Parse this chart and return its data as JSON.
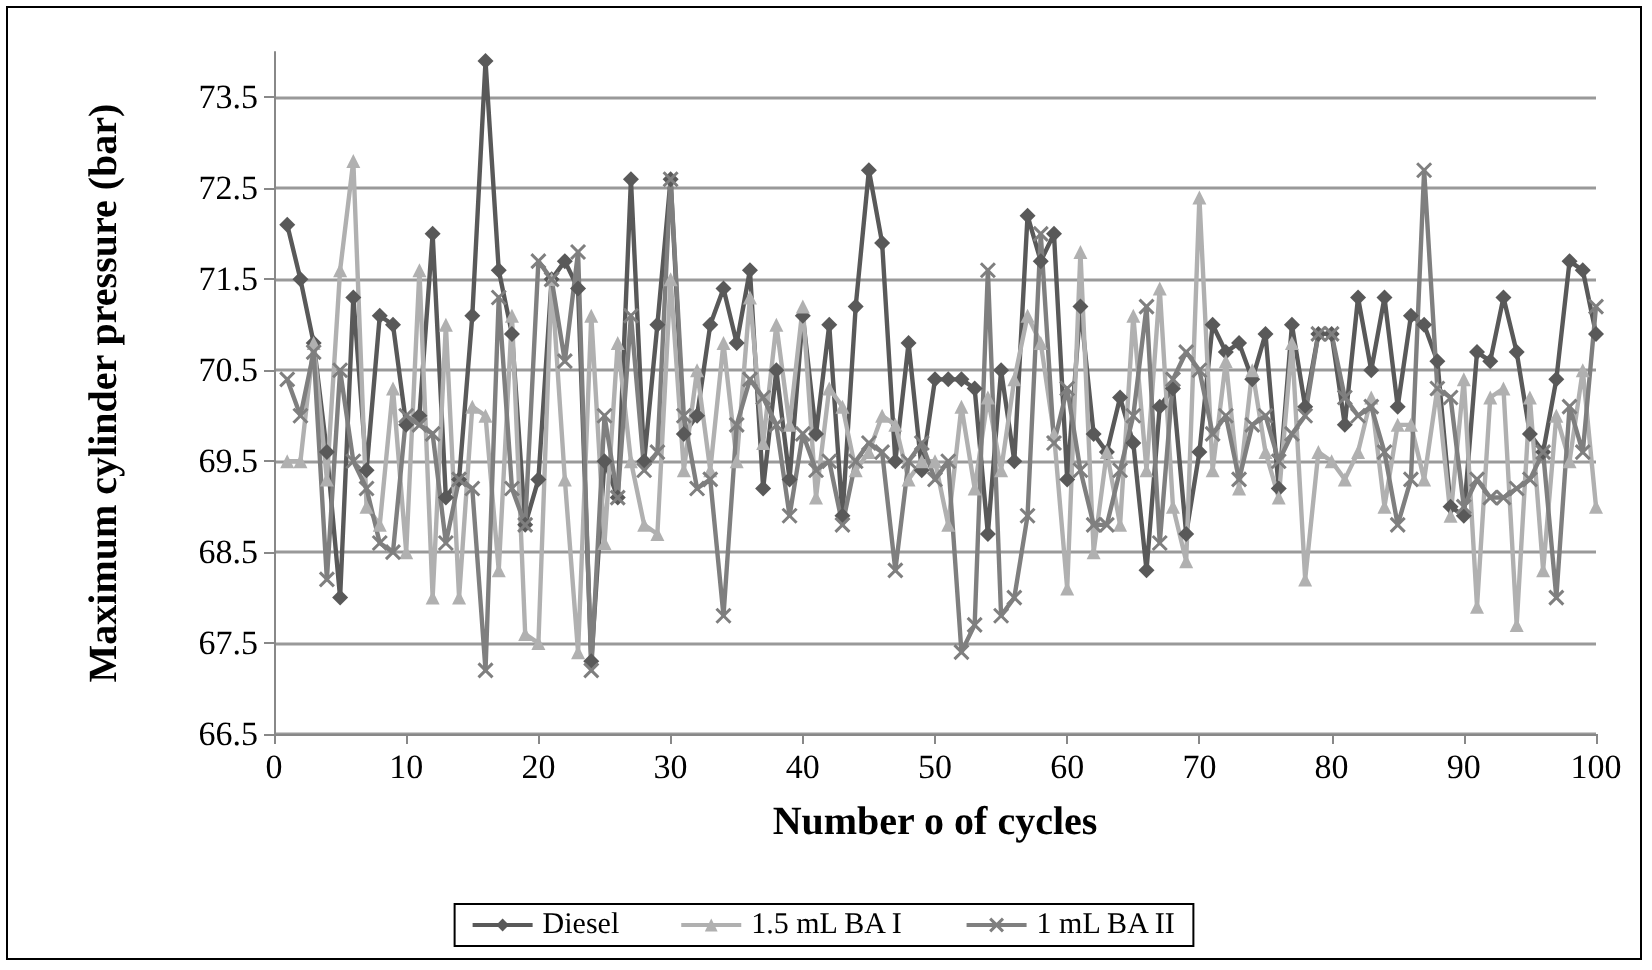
{
  "chart_data": {
    "type": "line",
    "xlabel": "Number o of cycles",
    "ylabel": "Maximum cylinder pressure (bar)",
    "x": [
      1,
      2,
      3,
      4,
      5,
      6,
      7,
      8,
      9,
      10,
      11,
      12,
      13,
      14,
      15,
      16,
      17,
      18,
      19,
      20,
      21,
      22,
      23,
      24,
      25,
      26,
      27,
      28,
      29,
      30,
      31,
      32,
      33,
      34,
      35,
      36,
      37,
      38,
      39,
      40,
      41,
      42,
      43,
      44,
      45,
      46,
      47,
      48,
      49,
      50,
      51,
      52,
      53,
      54,
      55,
      56,
      57,
      58,
      59,
      60,
      61,
      62,
      63,
      64,
      65,
      66,
      67,
      68,
      69,
      70,
      71,
      72,
      73,
      74,
      75,
      76,
      77,
      78,
      79,
      80,
      81,
      82,
      83,
      84,
      85,
      86,
      87,
      88,
      89,
      90,
      91,
      92,
      93,
      94,
      95,
      96,
      97,
      98,
      99,
      100
    ],
    "series": [
      {
        "name": "Diesel",
        "color": "#595959",
        "marker": "diamond",
        "values": [
          72.1,
          71.5,
          70.8,
          69.6,
          68.0,
          71.3,
          69.4,
          71.1,
          71.0,
          69.9,
          70.0,
          72.0,
          69.1,
          69.3,
          71.1,
          73.9,
          71.6,
          70.9,
          68.8,
          69.3,
          71.5,
          71.7,
          71.4,
          67.3,
          69.5,
          69.1,
          72.6,
          69.5,
          71.0,
          72.6,
          69.8,
          70.0,
          71.0,
          71.4,
          70.8,
          71.6,
          69.2,
          70.5,
          69.3,
          71.1,
          69.8,
          71.0,
          68.9,
          71.2,
          72.7,
          71.9,
          69.5,
          70.8,
          69.4,
          70.4,
          70.4,
          70.4,
          70.3,
          68.7,
          70.5,
          69.5,
          72.2,
          71.7,
          72.0,
          69.3,
          71.2,
          69.8,
          69.6,
          70.2,
          69.7,
          68.3,
          70.1,
          70.3,
          68.7,
          69.6,
          71.0,
          70.7,
          70.8,
          70.4,
          70.9,
          69.2,
          71.0,
          70.1,
          70.9,
          70.9,
          69.9,
          71.3,
          70.5,
          71.3,
          70.1,
          71.1,
          71.0,
          70.6,
          69.0,
          68.9,
          70.7,
          70.6,
          71.3,
          70.7,
          69.8,
          69.6,
          70.4,
          71.7,
          71.6,
          70.9
        ]
      },
      {
        "name": "1.5 mL BA I",
        "color": "#b0b0b0",
        "marker": "triangle",
        "values": [
          69.5,
          69.5,
          70.8,
          69.3,
          71.6,
          72.8,
          69.0,
          68.8,
          70.3,
          68.5,
          71.6,
          68.0,
          71.0,
          68.0,
          70.1,
          70.0,
          68.3,
          71.1,
          67.6,
          67.5,
          71.5,
          69.3,
          67.4,
          71.1,
          68.6,
          70.8,
          69.5,
          68.8,
          68.7,
          71.5,
          69.4,
          70.5,
          69.4,
          70.8,
          69.5,
          71.3,
          69.7,
          71.0,
          69.9,
          71.2,
          69.1,
          70.3,
          70.1,
          69.4,
          69.6,
          70.0,
          69.9,
          69.3,
          69.5,
          69.5,
          68.8,
          70.1,
          69.2,
          70.2,
          69.4,
          70.4,
          71.1,
          70.8,
          69.8,
          68.1,
          71.8,
          68.5,
          69.6,
          68.8,
          71.1,
          69.4,
          71.4,
          69.0,
          68.4,
          72.4,
          69.4,
          70.6,
          69.2,
          70.5,
          69.6,
          69.1,
          70.8,
          68.2,
          69.6,
          69.5,
          69.3,
          69.6,
          70.2,
          69.0,
          69.9,
          69.9,
          69.3,
          70.3,
          68.9,
          70.4,
          67.9,
          70.2,
          70.3,
          67.7,
          70.2,
          68.3,
          70.0,
          69.5,
          70.5,
          69.0
        ]
      },
      {
        "name": "1 mL BA II",
        "color": "#7f7f7f",
        "marker": "cross",
        "values": [
          70.4,
          70.0,
          70.7,
          68.2,
          70.5,
          69.5,
          69.2,
          68.6,
          68.5,
          70.0,
          69.9,
          69.8,
          68.6,
          69.3,
          69.2,
          67.2,
          71.3,
          69.2,
          68.8,
          71.7,
          71.5,
          70.6,
          71.8,
          67.2,
          70.0,
          69.1,
          71.1,
          69.4,
          69.6,
          72.6,
          70.0,
          69.2,
          69.3,
          67.8,
          69.9,
          70.4,
          70.2,
          69.9,
          68.9,
          69.8,
          69.4,
          69.5,
          68.8,
          69.5,
          69.7,
          69.6,
          68.3,
          69.5,
          69.7,
          69.3,
          69.5,
          67.4,
          67.7,
          71.6,
          67.8,
          68.0,
          68.9,
          72.0,
          69.7,
          70.3,
          69.4,
          68.8,
          68.8,
          69.4,
          70.0,
          71.2,
          68.6,
          70.4,
          70.7,
          70.5,
          69.8,
          70.0,
          69.3,
          69.9,
          70.0,
          69.5,
          69.8,
          70.0,
          70.9,
          70.9,
          70.2,
          70.0,
          70.1,
          69.6,
          68.8,
          69.3,
          72.7,
          70.3,
          70.2,
          69.0,
          69.3,
          69.1,
          69.1,
          69.2,
          69.3,
          69.6,
          68.0,
          70.1,
          69.6,
          71.2
        ]
      }
    ],
    "xlim": [
      0,
      100
    ],
    "xticks": [
      0,
      10,
      20,
      30,
      40,
      50,
      60,
      70,
      80,
      90,
      100
    ],
    "ylim": [
      66.5,
      74
    ],
    "yticks": [
      66.5,
      67.5,
      68.5,
      69.5,
      70.5,
      71.5,
      72.5,
      73.5
    ],
    "grid": "y",
    "legend": "bottom"
  }
}
